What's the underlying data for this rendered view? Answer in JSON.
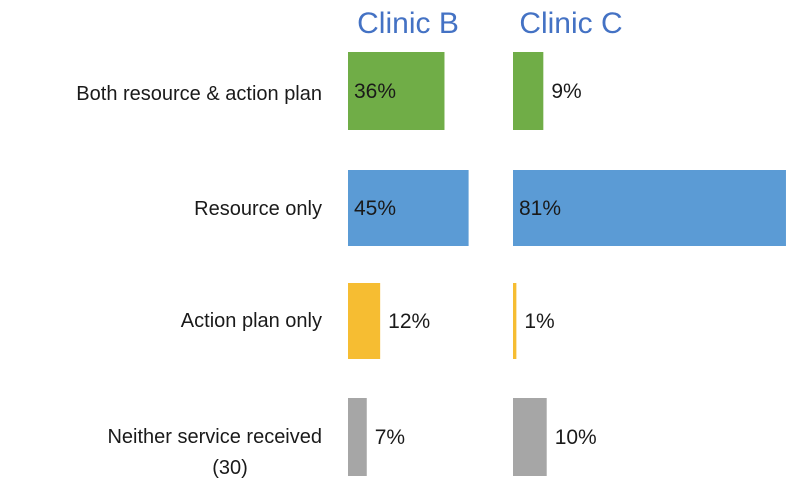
{
  "chart_data": {
    "type": "bar",
    "orientation": "horizontal",
    "title": "",
    "xlabel": "",
    "ylabel": "",
    "xlim": [
      0,
      100
    ],
    "categories": [
      "Both resource & action plan",
      "Resource only",
      "Action plan only",
      "Neither service received"
    ],
    "category_subnotes": [
      "",
      "",
      "",
      "(30)"
    ],
    "series": [
      {
        "name": "Clinic B",
        "values": [
          36,
          45,
          12,
          7
        ]
      },
      {
        "name": "Clinic C",
        "values": [
          9,
          81,
          1,
          10
        ]
      }
    ],
    "value_labels": [
      [
        "36%",
        "45%",
        "12%",
        "7%"
      ],
      [
        "9%",
        "81%",
        "1%",
        "10%"
      ]
    ],
    "category_colors": [
      "#70ad47",
      "#5b9bd5",
      "#f6bd32",
      "#a6a6a6"
    ],
    "title_color": "#4472c4"
  }
}
